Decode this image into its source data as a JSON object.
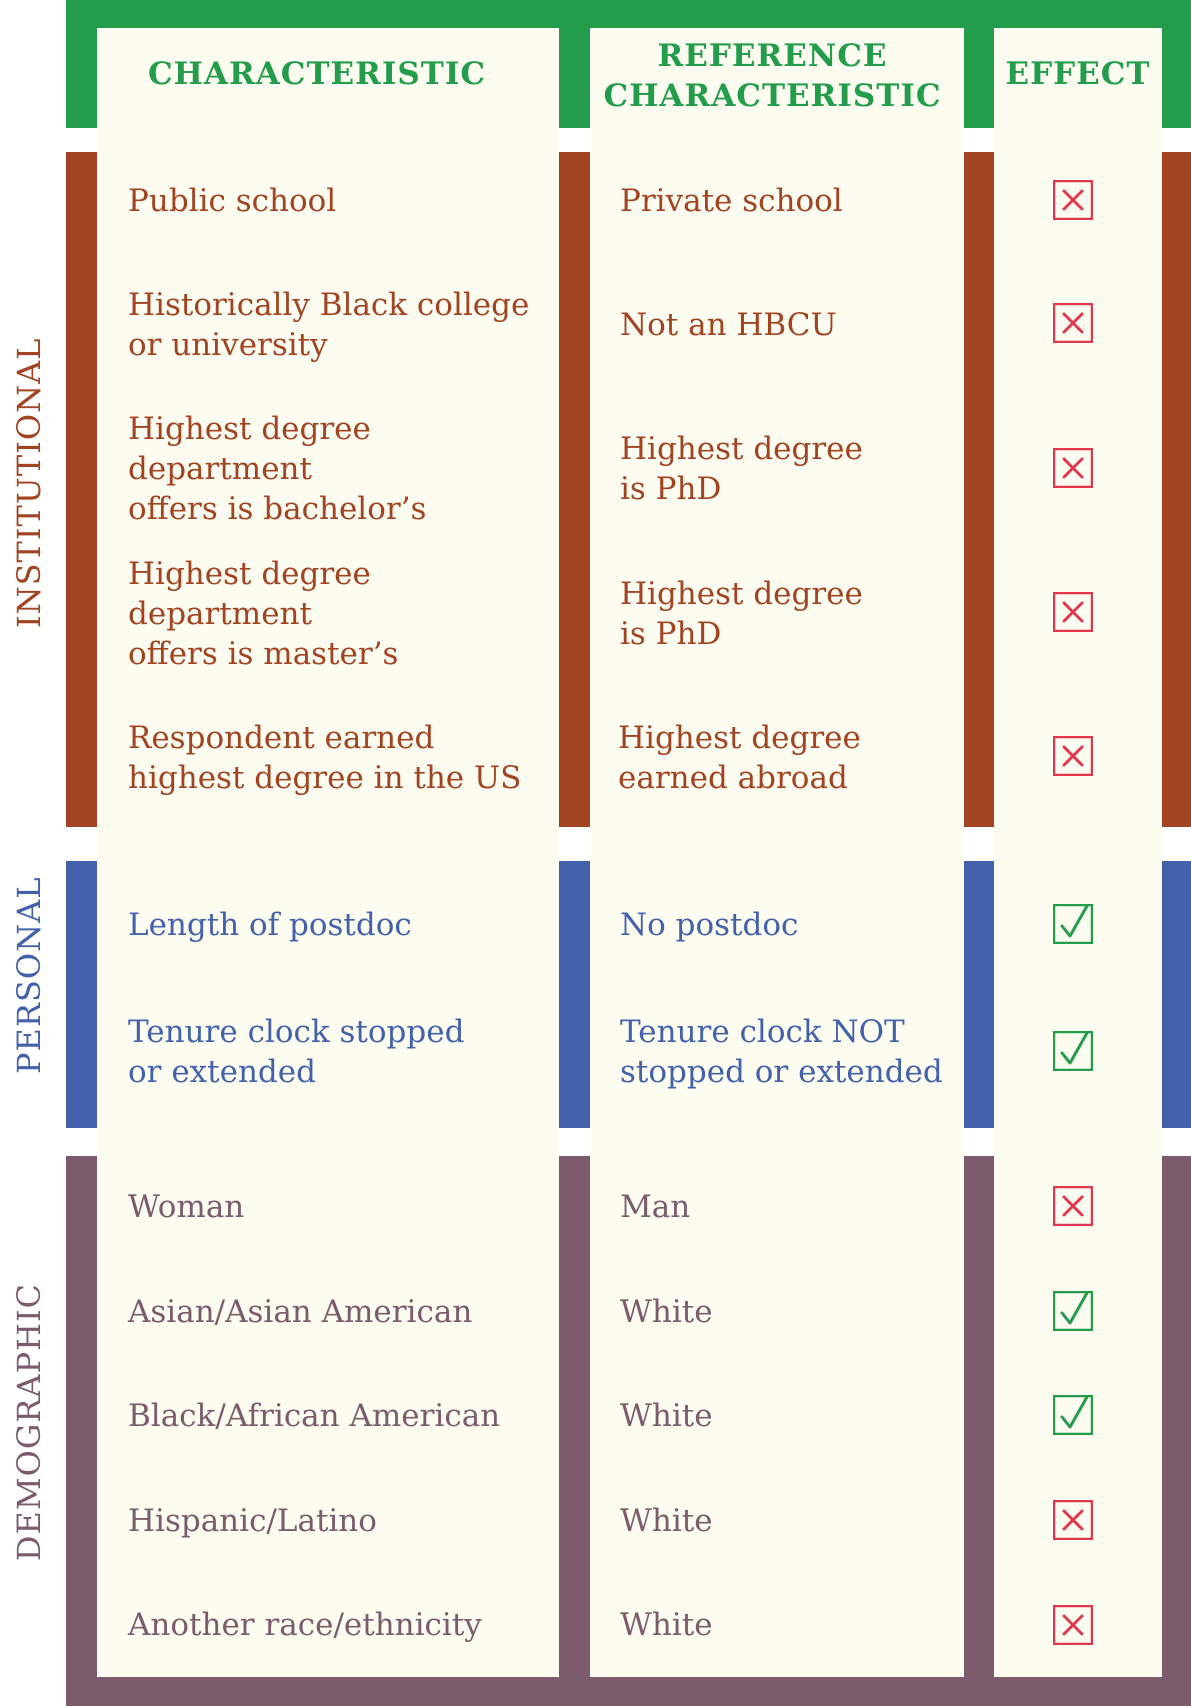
{
  "colors": {
    "header": "#239d4b",
    "institutional": "#a24422",
    "personal": "#4462ab",
    "demographic": "#7c5b6d",
    "panel": "#fdfcf0",
    "no_effect": "#e0384f",
    "effect": "#239d4b"
  },
  "headers": {
    "characteristic": "CHARACTERISTIC",
    "reference": "REFERENCE CHARACTERISTIC",
    "effect": "EFFECT"
  },
  "groups": [
    {
      "label": "INSTITUTIONAL",
      "rows": [
        {
          "characteristic": "Public school",
          "reference": "Private school",
          "effect_icon": "x-box-icon"
        },
        {
          "characteristic": "Historically Black college\nor university",
          "reference": "Not an HBCU",
          "effect_icon": "x-box-icon"
        },
        {
          "characteristic": "Highest degree department\noffers is bachelor’s",
          "reference": "Highest degree\nis PhD",
          "effect_icon": "x-box-icon"
        },
        {
          "characteristic": "Highest degree department\noffers is master’s",
          "reference": "Highest degree\nis PhD",
          "effect_icon": "x-box-icon"
        },
        {
          "characteristic": "Respondent earned\nhighest degree in the US",
          "reference": "Highest degree\nearned abroad",
          "effect_icon": "x-box-icon"
        }
      ]
    },
    {
      "label": "PERSONAL",
      "rows": [
        {
          "characteristic": "Length of postdoc",
          "reference": "No postdoc",
          "effect_icon": "check-box-icon"
        },
        {
          "characteristic": "Tenure clock stopped\nor extended",
          "reference": "Tenure clock NOT\nstopped or extended",
          "effect_icon": "check-box-icon"
        }
      ]
    },
    {
      "label": "DEMOGRAPHIC",
      "rows": [
        {
          "characteristic": "Woman",
          "reference": "Man",
          "effect_icon": "x-box-icon"
        },
        {
          "characteristic": "Asian/Asian American",
          "reference": "White",
          "effect_icon": "check-box-icon"
        },
        {
          "characteristic": "Black/African American",
          "reference": "White",
          "effect_icon": "check-box-icon"
        },
        {
          "characteristic": "Hispanic/Latino",
          "reference": "White",
          "effect_icon": "x-box-icon"
        },
        {
          "characteristic": "Another race/ethnicity",
          "reference": "White",
          "effect_icon": "x-box-icon"
        }
      ]
    }
  ]
}
